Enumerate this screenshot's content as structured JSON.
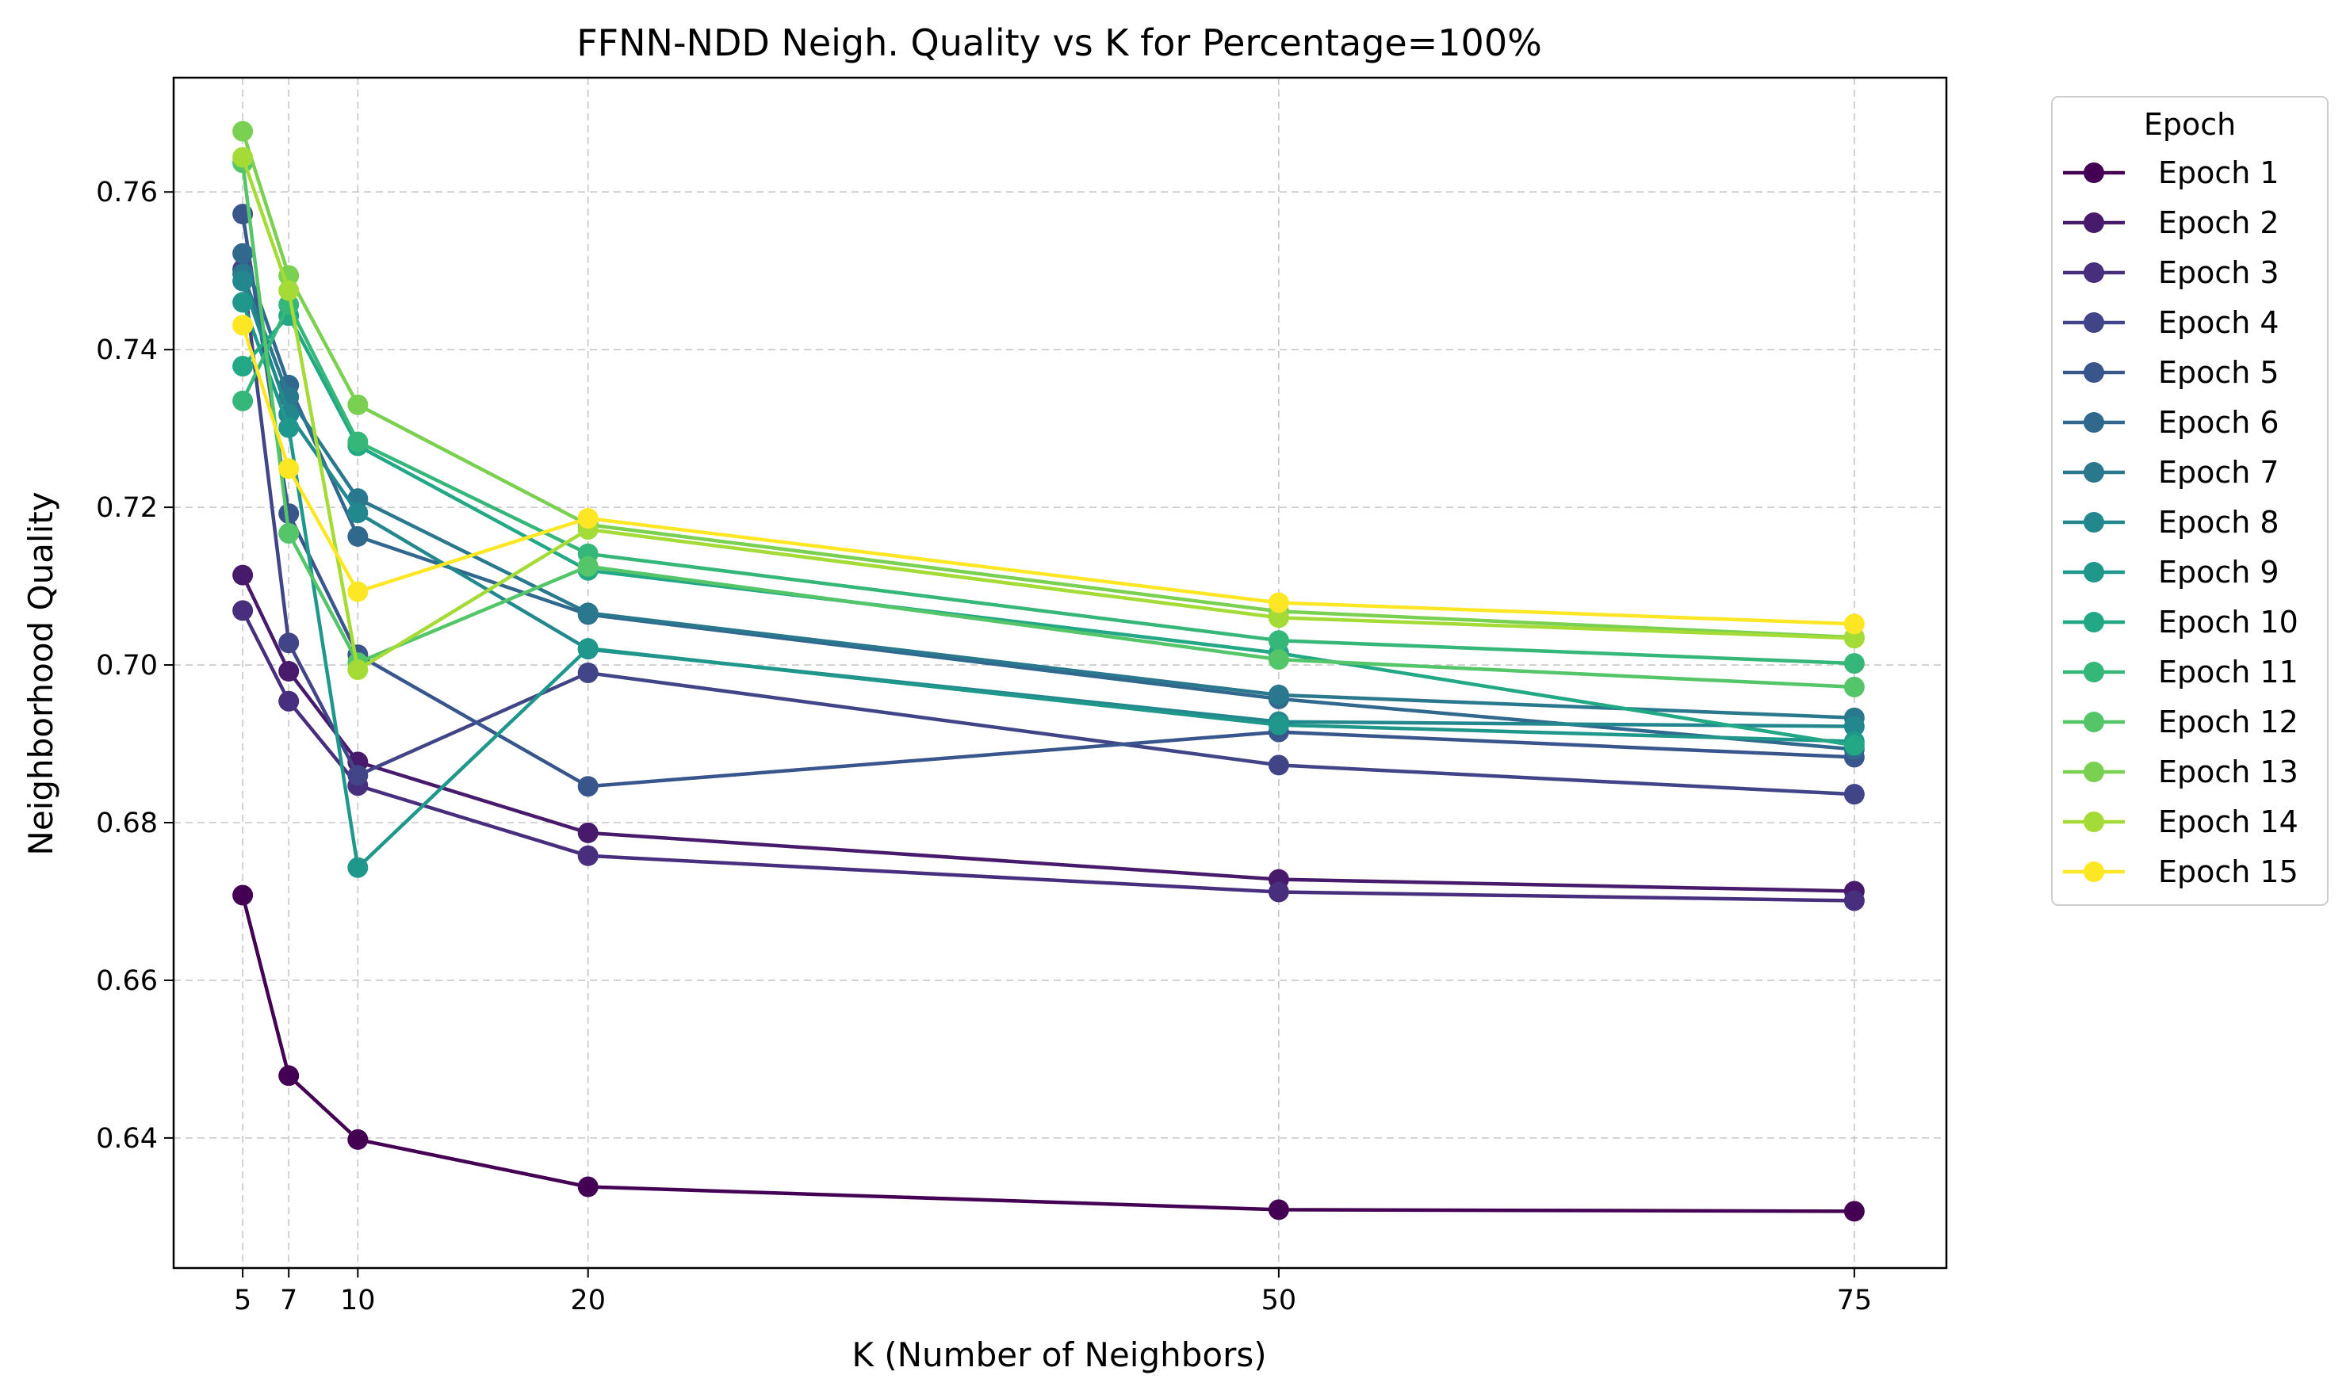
{
  "chart_data": {
    "type": "line",
    "title": "FFNN-NDD Neigh. Quality vs K for Percentage=100%",
    "xlabel": "K (Number of Neighbors)",
    "ylabel": "Neighborhood Quality",
    "x": [
      5,
      7,
      10,
      20,
      50,
      75
    ],
    "x_ticks": [
      "5",
      "7",
      "10",
      "20",
      "50",
      "75"
    ],
    "y_ticks": [
      "0.64",
      "0.66",
      "0.68",
      "0.70",
      "0.72",
      "0.74",
      "0.76"
    ],
    "xlim": [
      2,
      79
    ],
    "ylim": [
      0.6235,
      0.7745
    ],
    "grid": true,
    "legend": {
      "title": "Epoch",
      "placement": "outside-right"
    },
    "series": [
      {
        "name": "Epoch 1",
        "color": "#440154",
        "values": [
          0.6708,
          0.6479,
          0.6398,
          0.6338,
          0.6309,
          0.6307
        ]
      },
      {
        "name": "Epoch 2",
        "color": "#481a6c",
        "values": [
          0.7114,
          0.6992,
          0.6877,
          0.6787,
          0.6728,
          0.6713
        ]
      },
      {
        "name": "Epoch 3",
        "color": "#472f7d",
        "values": [
          0.7069,
          0.6954,
          0.6847,
          0.6758,
          0.6712,
          0.6701
        ]
      },
      {
        "name": "Epoch 4",
        "color": "#414487",
        "values": [
          0.7502,
          0.7028,
          0.686,
          0.699,
          0.6873,
          0.6836
        ]
      },
      {
        "name": "Epoch 5",
        "color": "#39568c",
        "values": [
          0.7572,
          0.7192,
          0.7013,
          0.6846,
          0.6915,
          0.6883
        ]
      },
      {
        "name": "Epoch 6",
        "color": "#31688e",
        "values": [
          0.7522,
          0.7355,
          0.7163,
          0.7064,
          0.6957,
          0.6893
        ]
      },
      {
        "name": "Epoch 7",
        "color": "#2a788e",
        "values": [
          0.7496,
          0.734,
          0.7211,
          0.7066,
          0.6962,
          0.6933
        ]
      },
      {
        "name": "Epoch 8",
        "color": "#23888e",
        "values": [
          0.7487,
          0.7318,
          0.7193,
          0.702,
          0.6928,
          0.6922
        ]
      },
      {
        "name": "Epoch 9",
        "color": "#1f988b",
        "values": [
          0.746,
          0.7301,
          0.6743,
          0.7021,
          0.6924,
          0.6903
        ]
      },
      {
        "name": "Epoch 10",
        "color": "#22a884",
        "values": [
          0.7379,
          0.7443,
          0.7278,
          0.712,
          0.7015,
          0.6898
        ]
      },
      {
        "name": "Epoch 11",
        "color": "#35b779",
        "values": [
          0.7335,
          0.7457,
          0.7283,
          0.7141,
          0.7031,
          0.7002
        ]
      },
      {
        "name": "Epoch 12",
        "color": "#54c568",
        "values": [
          0.7637,
          0.7167,
          0.7003,
          0.7125,
          0.7007,
          0.6972
        ]
      },
      {
        "name": "Epoch 13",
        "color": "#7ad151",
        "values": [
          0.7677,
          0.7494,
          0.733,
          0.7178,
          0.7068,
          0.7035
        ]
      },
      {
        "name": "Epoch 14",
        "color": "#a5db36",
        "values": [
          0.7644,
          0.7475,
          0.6994,
          0.7172,
          0.706,
          0.7034
        ]
      },
      {
        "name": "Epoch 15",
        "color": "#fde725",
        "values": [
          0.7431,
          0.7249,
          0.7093,
          0.7186,
          0.7079,
          0.7052
        ]
      }
    ]
  }
}
